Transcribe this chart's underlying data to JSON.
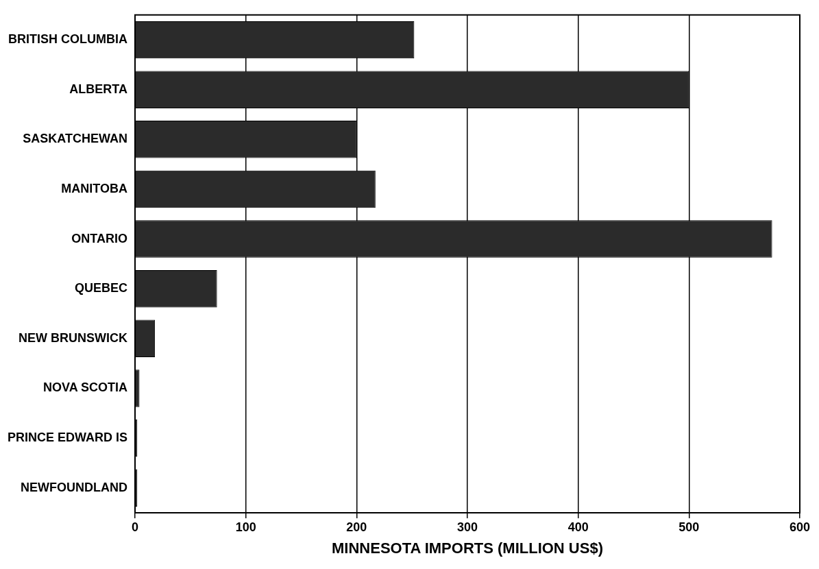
{
  "chart_data": {
    "type": "bar",
    "orientation": "horizontal",
    "xlabel": "MINNESOTA IMPORTS (MILLION US$)",
    "categories": [
      "BRITISH COLUMBIA",
      "ALBERTA",
      "SASKATCHEWAN",
      "MANITOBA",
      "ONTARIO",
      "QUEBEC",
      "NEW BRUNSWICK",
      "NOVA SCOTIA",
      "PRINCE EDWARD IS",
      "NEWFOUNDLAND"
    ],
    "values": [
      252,
      500,
      200,
      217,
      575,
      74,
      18,
      4,
      2,
      2
    ],
    "color": "#2b2b2b",
    "xlim": [
      0,
      600
    ],
    "xticks": [
      0,
      100,
      200,
      300,
      400,
      500,
      600
    ],
    "grid": "x",
    "legend": false
  }
}
